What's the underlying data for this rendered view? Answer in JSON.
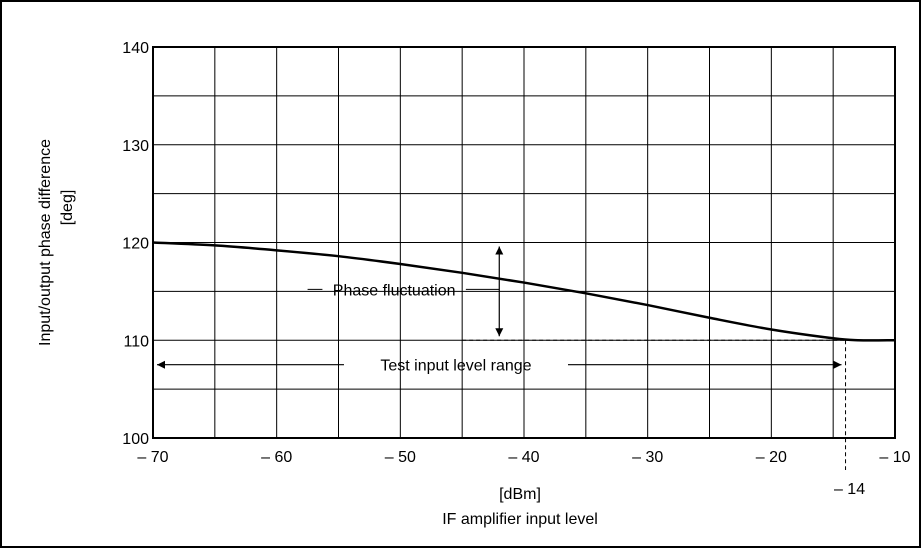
{
  "chart_data": {
    "type": "line",
    "title": "",
    "xlabel_unit": "[dBm]",
    "xlabel": "IF amplifier input level",
    "ylabel": "Input/output phase difference",
    "ylabel_unit": "[deg]",
    "xlim": [
      -70,
      -10
    ],
    "ylim": [
      100,
      140
    ],
    "x_ticks": [
      "– 70",
      "– 60",
      "– 50",
      "– 40",
      "– 30",
      "– 20",
      "– 10"
    ],
    "x_tick_values": [
      -70,
      -60,
      -50,
      -40,
      -30,
      -20,
      -10
    ],
    "y_ticks": [
      "100",
      "110",
      "120",
      "130",
      "140"
    ],
    "y_tick_values": [
      100,
      110,
      120,
      130,
      140
    ],
    "grid": true,
    "series": [
      {
        "x": [
          -70,
          -65,
          -60,
          -55,
          -50,
          -45,
          -40,
          -35,
          -30,
          -25,
          -20,
          -15,
          -13,
          -10
        ],
        "y": [
          120,
          119.7,
          119.2,
          118.6,
          117.8,
          116.9,
          115.9,
          114.8,
          113.6,
          112.3,
          111.1,
          110.2,
          110.0,
          110.0
        ]
      }
    ],
    "annotations": {
      "phase_fluctuation": {
        "label": "Phase fluctuation",
        "upper_y": 120,
        "lower_y": 110,
        "arrow_x": -42,
        "upper_x_range": [
          -70,
          -40
        ],
        "lower_x_range": [
          -45,
          -14
        ]
      },
      "test_range": {
        "label": "Test input level range",
        "x_range": [
          -70,
          -14
        ],
        "y": 107.5
      },
      "marker": {
        "label": "– 14",
        "x": -14
      }
    }
  }
}
